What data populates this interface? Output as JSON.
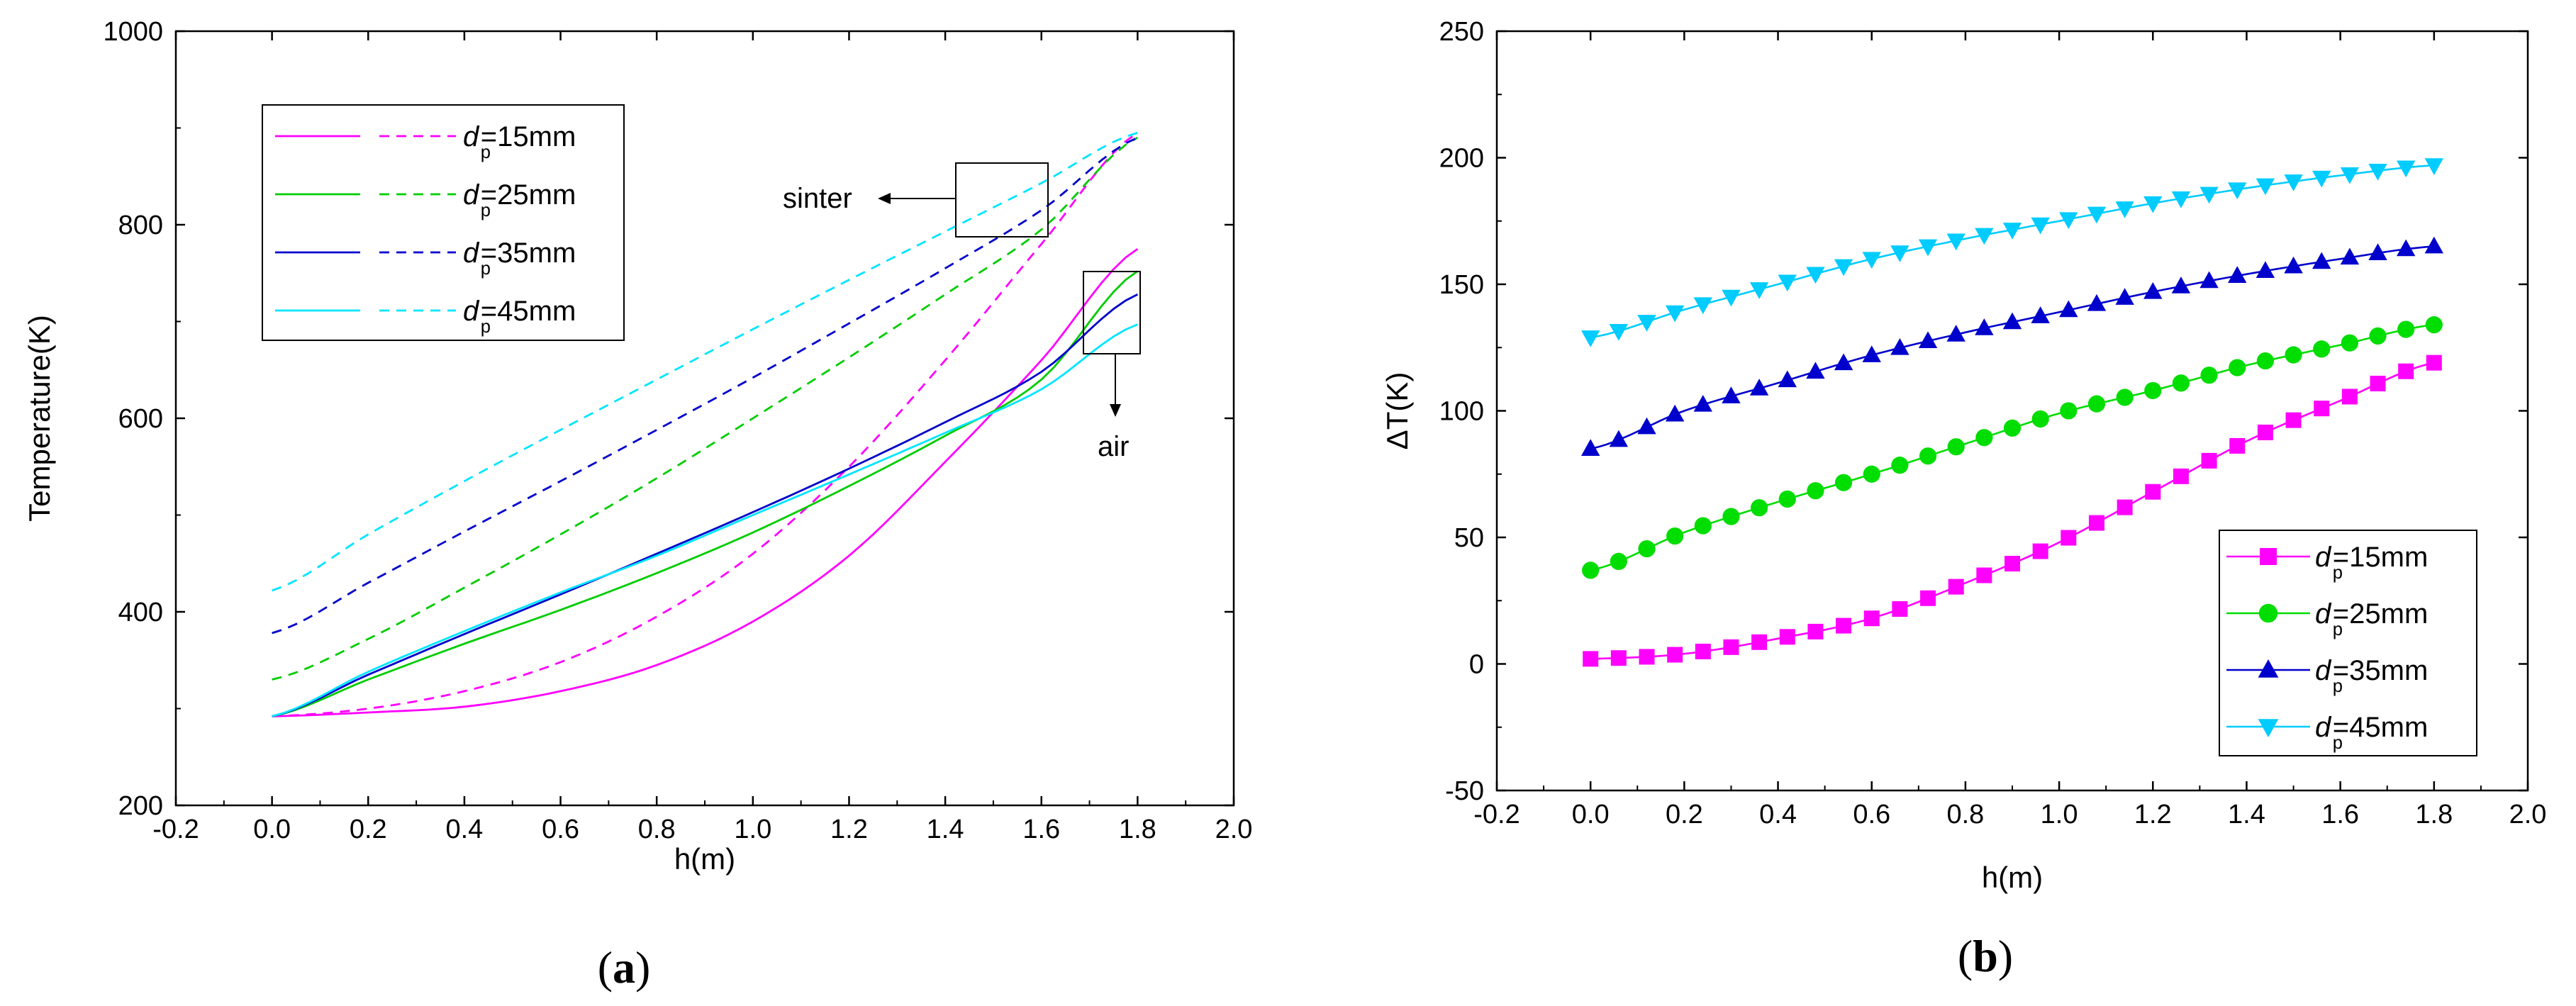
{
  "chart_data": [
    {
      "type": "line",
      "panel_label": "a",
      "xlabel": "h(m)",
      "ylabel": "Temperature(K)",
      "xlim": [
        -0.2,
        2.0
      ],
      "ylim": [
        200,
        1000
      ],
      "xticks": [
        "-0.2",
        "0.0",
        "0.2",
        "0.4",
        "0.6",
        "0.8",
        "1.0",
        "1.2",
        "1.4",
        "1.6",
        "1.8",
        "2.0"
      ],
      "yticks": [
        "200",
        "400",
        "600",
        "800",
        "1000"
      ],
      "legend_position": "top-left",
      "legend": [
        {
          "d": "d",
          "sub": "p",
          "rest": "=15mm"
        },
        {
          "d": "d",
          "sub": "p",
          "rest": "=25mm"
        },
        {
          "d": "d",
          "sub": "p",
          "rest": "=35mm"
        },
        {
          "d": "d",
          "sub": "p",
          "rest": "=45mm"
        }
      ],
      "annotations": {
        "sinter": "sinter",
        "air": "air"
      },
      "line_styles": {
        "solid": "air",
        "dashed": "sinter"
      },
      "x": [
        0.0,
        0.2,
        0.4,
        0.6,
        0.8,
        1.0,
        1.2,
        1.4,
        1.6,
        1.8
      ],
      "series": [
        {
          "name": "dp=15mm",
          "color": "#ff00ff",
          "air": [
            292,
            296,
            302,
            318,
            345,
            390,
            458,
            555,
            660,
            775
          ],
          "sinter": [
            292,
            300,
            318,
            348,
            395,
            460,
            550,
            660,
            780,
            895
          ]
        },
        {
          "name": "dp=25mm",
          "color": "#00cc00",
          "air": [
            292,
            330,
            367,
            402,
            440,
            482,
            530,
            582,
            640,
            752
          ],
          "sinter": [
            330,
            372,
            425,
            480,
            538,
            600,
            663,
            728,
            795,
            890
          ]
        },
        {
          "name": "dp=35mm",
          "color": "#0000cc",
          "air": [
            292,
            335,
            377,
            418,
            460,
            503,
            548,
            596,
            648,
            728
          ],
          "sinter": [
            378,
            430,
            483,
            535,
            588,
            642,
            698,
            755,
            815,
            890
          ]
        },
        {
          "name": "dp=45mm",
          "color": "#00e5ff",
          "air": [
            292,
            338,
            380,
            420,
            458,
            500,
            542,
            585,
            630,
            697
          ],
          "sinter": [
            422,
            480,
            535,
            588,
            640,
            692,
            743,
            793,
            843,
            895
          ]
        }
      ]
    },
    {
      "type": "line",
      "panel_label": "b",
      "xlabel": "h(m)",
      "ylabel": "ΔT(K)",
      "xlim": [
        -0.2,
        2.0
      ],
      "ylim": [
        -50,
        250
      ],
      "xticks": [
        "-0.2",
        "0.0",
        "0.2",
        "0.4",
        "0.6",
        "0.8",
        "1.0",
        "1.2",
        "1.4",
        "1.6",
        "1.8",
        "2.0"
      ],
      "yticks": [
        "-50",
        "0",
        "50",
        "100",
        "150",
        "200",
        "250"
      ],
      "legend_position": "bottom-right",
      "legend": [
        {
          "d": "d",
          "sub": "p",
          "rest": "=15mm"
        },
        {
          "d": "d",
          "sub": "p",
          "rest": "=25mm"
        },
        {
          "d": "d",
          "sub": "p",
          "rest": "=35mm"
        },
        {
          "d": "d",
          "sub": "p",
          "rest": "=45mm"
        }
      ],
      "x": [
        0.0,
        0.2,
        0.4,
        0.6,
        0.8,
        1.0,
        1.2,
        1.4,
        1.6,
        1.8
      ],
      "series": [
        {
          "name": "dp=15mm",
          "color": "#ff00ff",
          "marker": "square",
          "values": [
            2,
            4,
            10,
            18,
            32,
            48,
            68,
            88,
            104,
            119
          ]
        },
        {
          "name": "dp=25mm",
          "color": "#00dd00",
          "marker": "circle",
          "values": [
            37,
            52,
            64,
            75,
            87,
            99,
            108,
            118,
            126,
            134
          ]
        },
        {
          "name": "dp=35mm",
          "color": "#0000cc",
          "marker": "triangle-up",
          "values": [
            85,
            100,
            111,
            122,
            131,
            139,
            147,
            154,
            160,
            165
          ]
        },
        {
          "name": "dp=45mm",
          "color": "#00ccff",
          "marker": "triangle-down",
          "values": [
            129,
            140,
            150,
            160,
            168,
            175,
            182,
            188,
            193,
            197
          ]
        }
      ]
    }
  ]
}
